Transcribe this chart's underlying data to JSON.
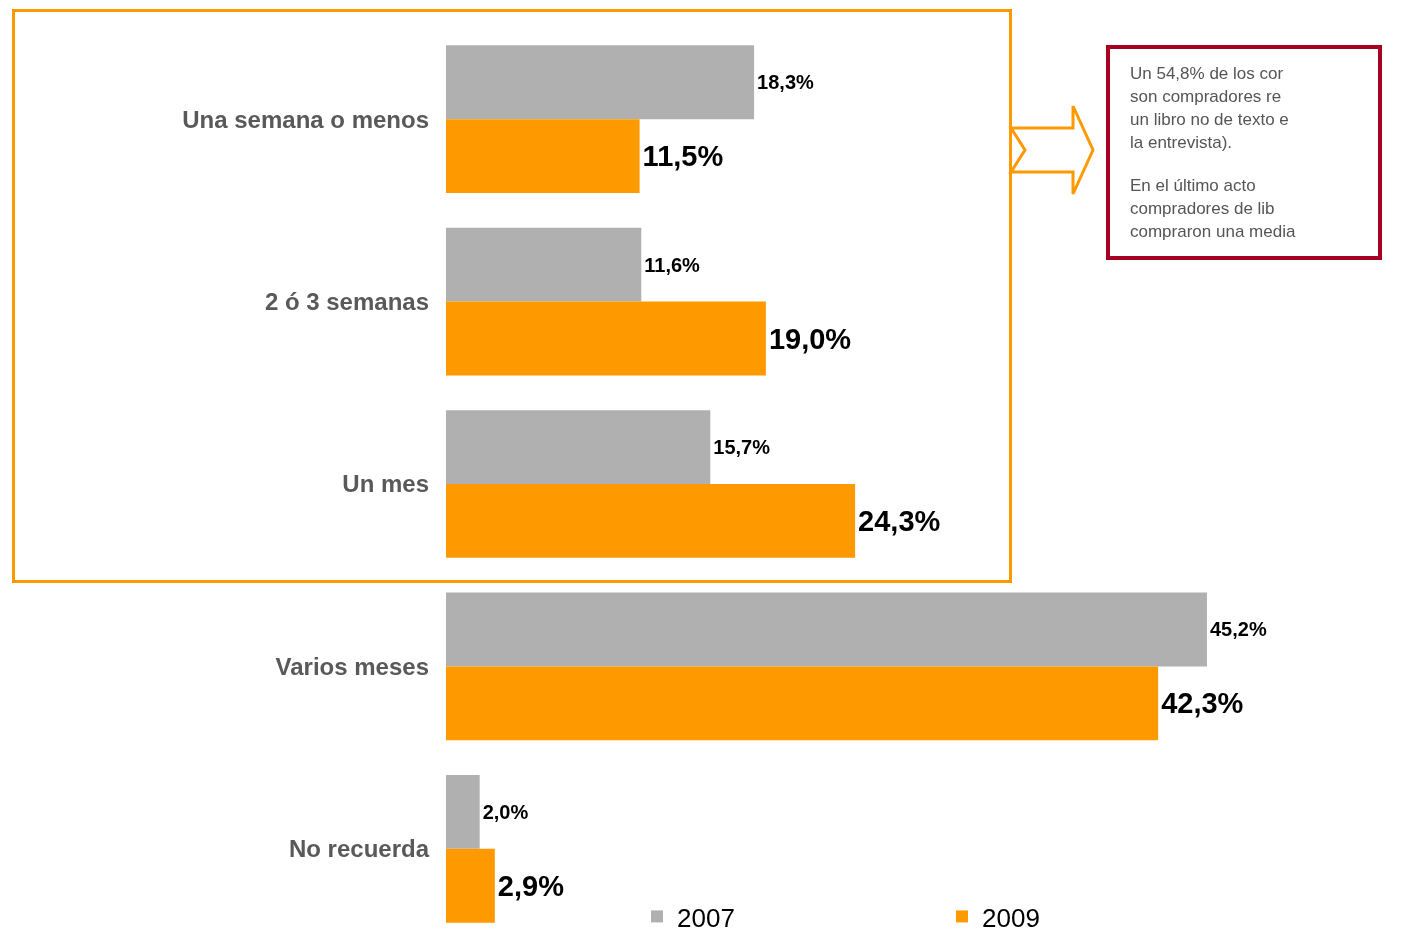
{
  "chart_data": {
    "type": "bar",
    "orientation": "horizontal",
    "categories": [
      "Una semana o menos",
      "2 ó 3 semanas",
      "Un mes",
      "Varios meses",
      "No recuerda"
    ],
    "series": [
      {
        "name": "2007",
        "color": "#b0b0b0",
        "values": [
          18.3,
          11.6,
          15.7,
          45.2,
          2.0
        ],
        "value_labels": [
          "18,3%",
          "11,6%",
          "15,7%",
          "45,2%",
          "2,0%"
        ]
      },
      {
        "name": "2009",
        "color": "#ff9900",
        "values": [
          11.5,
          19.0,
          24.3,
          42.3,
          2.9
        ],
        "value_labels": [
          "11,5%",
          "19,0%",
          "24,3%",
          "42,3%",
          "2,9%"
        ]
      }
    ],
    "tick_labels": "y",
    "legend": "bottom right",
    "annotations": [
      "Un 54,8% de los cor\nson compradores re\nun libro no de texto e\nla entrevista).",
      "En el último acto\ncompradores de lib\ncompraron una media"
    ]
  }
}
